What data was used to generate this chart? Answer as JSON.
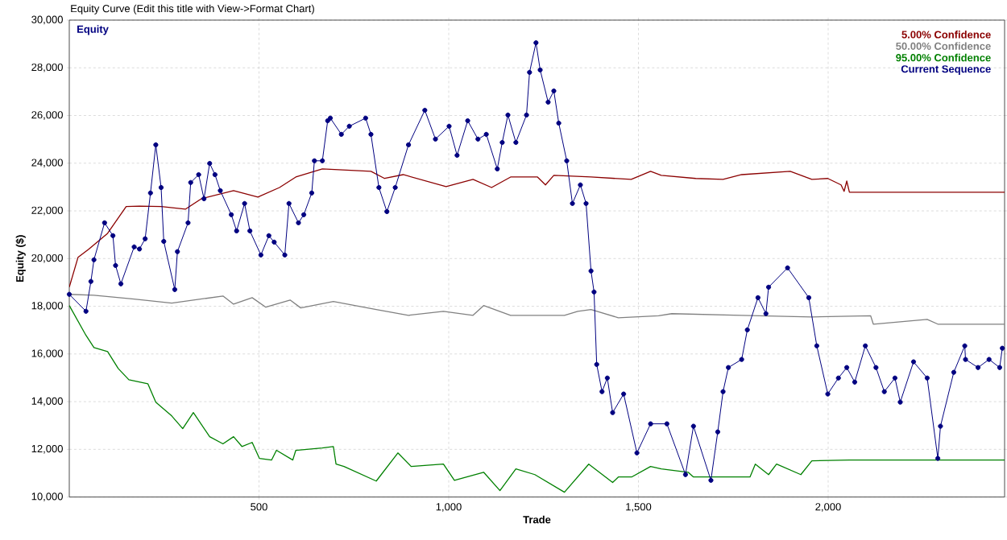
{
  "chart_data": {
    "type": "line",
    "title": "Equity Curve (Edit this title with View->Format Chart)",
    "xlabel": "Trade",
    "ylabel": "Equity ($)",
    "annotations": [
      "Equity"
    ],
    "xlim": [
      0,
      2465
    ],
    "ylim": [
      10000,
      30000
    ],
    "xticks": [
      {
        "value": 500,
        "label": "500"
      },
      {
        "value": 1000,
        "label": "1,000"
      },
      {
        "value": 1500,
        "label": "1,500"
      },
      {
        "value": 2000,
        "label": "2,000"
      }
    ],
    "yticks": [
      {
        "value": 10000,
        "label": "10,000"
      },
      {
        "value": 12000,
        "label": "12,000"
      },
      {
        "value": 14000,
        "label": "14,000"
      },
      {
        "value": 16000,
        "label": "16,000"
      },
      {
        "value": 18000,
        "label": "18,000"
      },
      {
        "value": 20000,
        "label": "20,000"
      },
      {
        "value": 22000,
        "label": "22,000"
      },
      {
        "value": 24000,
        "label": "24,000"
      },
      {
        "value": 26000,
        "label": "26,000"
      },
      {
        "value": 28000,
        "label": "28,000"
      },
      {
        "value": 30000,
        "label": "30,000"
      }
    ],
    "grid": true,
    "legend": "top right",
    "series": [
      {
        "name": "5.00% Confidence",
        "color": "#8b0000",
        "x": [
          0,
          23,
          51,
          101,
          150,
          185,
          242,
          306,
          348,
          433,
          497,
          554,
          597,
          667,
          795,
          831,
          880,
          993,
          1064,
          1113,
          1163,
          1234,
          1255,
          1277,
          1375,
          1481,
          1532,
          1560,
          1651,
          1723,
          1772,
          1900,
          1957,
          1999,
          2034,
          2042,
          2049,
          2056,
          2465
        ],
        "values": [
          18800,
          20050,
          20390,
          21060,
          22180,
          22200,
          22180,
          22070,
          22510,
          22850,
          22580,
          22980,
          23420,
          23760,
          23660,
          23360,
          23520,
          23020,
          23320,
          22980,
          23420,
          23420,
          23090,
          23490,
          23420,
          23320,
          23660,
          23490,
          23360,
          23320,
          23520,
          23660,
          23320,
          23360,
          23090,
          22820,
          23250,
          22780,
          22780
        ]
      },
      {
        "name": "50.00% Confidence",
        "color": "#808080",
        "x": [
          0,
          65,
          171,
          270,
          405,
          433,
          482,
          518,
          582,
          610,
          696,
          809,
          894,
          986,
          1064,
          1092,
          1163,
          1305,
          1340,
          1375,
          1447,
          1553,
          1588,
          1772,
          1957,
          2112,
          2119,
          2261,
          2289,
          2465
        ],
        "values": [
          18500,
          18460,
          18300,
          18130,
          18430,
          18090,
          18360,
          17960,
          18260,
          17930,
          18200,
          17860,
          17620,
          17790,
          17620,
          18030,
          17620,
          17620,
          17790,
          17860,
          17520,
          17600,
          17690,
          17620,
          17550,
          17600,
          17250,
          17450,
          17250,
          17250
        ]
      },
      {
        "name": "95.00% Confidence",
        "color": "#008000",
        "x": [
          0,
          44,
          65,
          101,
          129,
          157,
          207,
          228,
          270,
          299,
          327,
          370,
          405,
          433,
          455,
          482,
          501,
          533,
          546,
          589,
          597,
          667,
          696,
          703,
          724,
          809,
          866,
          901,
          986,
          1015,
          1092,
          1135,
          1177,
          1227,
          1305,
          1369,
          1432,
          1447,
          1482,
          1532,
          1560,
          1631,
          1645,
          1794,
          1808,
          1843,
          1864,
          1928,
          1957,
          2056,
          2465
        ],
        "values": [
          18030,
          16780,
          16270,
          16100,
          15390,
          14920,
          14750,
          13980,
          13400,
          12870,
          13540,
          12530,
          12230,
          12530,
          12120,
          12290,
          11620,
          11550,
          11960,
          11550,
          11960,
          12060,
          12120,
          11380,
          11280,
          10670,
          11850,
          11280,
          11380,
          10700,
          11040,
          10270,
          11180,
          10940,
          10200,
          11380,
          10610,
          10840,
          10840,
          11280,
          11180,
          11040,
          10840,
          10840,
          11380,
          10940,
          11380,
          10940,
          11520,
          11550,
          11550
        ]
      },
      {
        "name": "Current Sequence",
        "color": "#000080",
        "marker": "circle",
        "x": [
          0,
          44,
          57,
          65,
          93,
          115,
          122,
          136,
          171,
          185,
          200,
          214,
          228,
          242,
          249,
          278,
          285,
          313,
          320,
          341,
          355,
          370,
          384,
          398,
          427,
          441,
          462,
          476,
          505,
          526,
          540,
          568,
          579,
          604,
          618,
          639,
          646,
          667,
          681,
          688,
          717,
          738,
          781,
          795,
          816,
          837,
          859,
          894,
          937,
          965,
          1001,
          1022,
          1050,
          1077,
          1099,
          1128,
          1141,
          1156,
          1177,
          1205,
          1213,
          1230,
          1241,
          1262,
          1277,
          1290,
          1311,
          1326,
          1347,
          1362,
          1375,
          1383,
          1390,
          1404,
          1418,
          1432,
          1461,
          1496,
          1532,
          1575,
          1624,
          1645,
          1691,
          1709,
          1723,
          1737,
          1772,
          1787,
          1815,
          1836,
          1843,
          1893,
          1949,
          1970,
          1999,
          2027,
          2049,
          2070,
          2098,
          2126,
          2148,
          2176,
          2190,
          2225,
          2261,
          2289,
          2296,
          2331,
          2360,
          2362,
          2395,
          2424,
          2452,
          2459
        ],
        "values": [
          18500,
          17790,
          19040,
          19950,
          21500,
          20960,
          19710,
          18940,
          20490,
          20400,
          20830,
          22750,
          24770,
          22980,
          20720,
          18700,
          20290,
          21500,
          23190,
          23520,
          22510,
          23990,
          23520,
          22850,
          21840,
          21160,
          22310,
          21160,
          20150,
          20960,
          20690,
          20150,
          22310,
          21500,
          21840,
          22750,
          24100,
          24100,
          25780,
          25890,
          25210,
          25550,
          25890,
          25210,
          22980,
          21970,
          22980,
          24770,
          26220,
          25010,
          25550,
          24330,
          25780,
          25010,
          25210,
          23760,
          24870,
          26020,
          24870,
          26020,
          27810,
          29050,
          27910,
          26560,
          27030,
          25680,
          24100,
          22310,
          23090,
          22310,
          19480,
          18600,
          15560,
          14420,
          14990,
          13540,
          14320,
          11850,
          13070,
          13070,
          10940,
          12970,
          10700,
          12730,
          14420,
          15430,
          15770,
          17010,
          18360,
          17690,
          18800,
          19610,
          18360,
          16340,
          14320,
          14990,
          15430,
          14820,
          16340,
          15430,
          14420,
          14990,
          13980,
          15670,
          14990,
          11620,
          12970,
          15230,
          16340,
          15770,
          15430,
          15770,
          15430,
          16240
        ]
      }
    ]
  }
}
